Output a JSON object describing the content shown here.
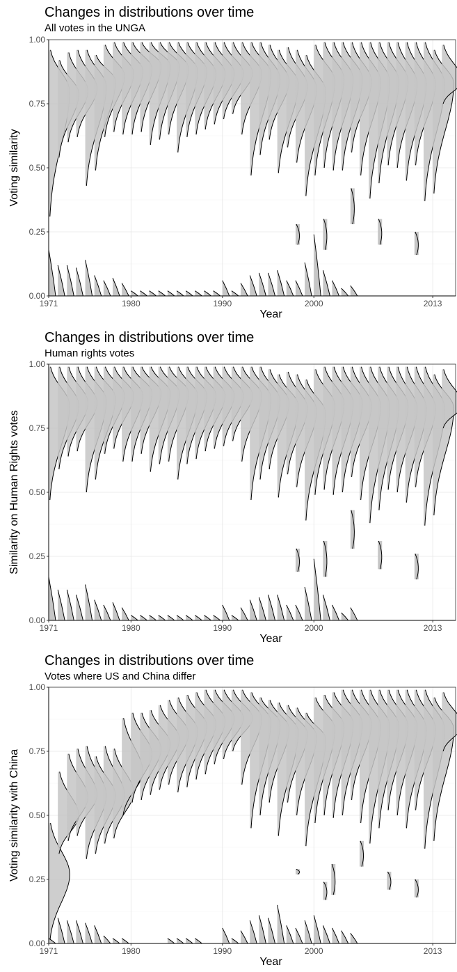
{
  "chart_data": [
    {
      "type": "ridgeline",
      "title": "Changes in distributions over time",
      "subtitle": "All votes in the UNGA",
      "xlabel": "Year",
      "ylabel": "Voting similarity",
      "x_tick_labels": [
        "1971",
        "1980",
        "1990",
        "2000",
        "2013"
      ],
      "y_tick_labels": [
        "0.00",
        "0.25",
        "0.50",
        "0.75",
        "1.00"
      ],
      "xlim": [
        1971,
        2015.5
      ],
      "ylim": [
        0,
        1
      ],
      "grid": true,
      "legend": "none",
      "colors": {
        "fill": "#c6c6c6",
        "line": "#000000"
      },
      "x": [
        1971,
        1972,
        1973,
        1974,
        1975,
        1976,
        1977,
        1978,
        1979,
        1980,
        1981,
        1982,
        1983,
        1984,
        1985,
        1986,
        1987,
        1988,
        1989,
        1990,
        1991,
        1992,
        1993,
        1994,
        1995,
        1996,
        1997,
        1998,
        1999,
        2000,
        2001,
        2002,
        2003,
        2004,
        2005,
        2006,
        2007,
        2008,
        2009,
        2010,
        2011,
        2012,
        2013,
        2014
      ],
      "series": [
        {
          "values": [
            0.96,
            0.92,
            0.95,
            0.96,
            0.96,
            0.94,
            0.98,
            0.99,
            0.99,
            0.99,
            0.99,
            0.99,
            0.99,
            0.99,
            0.99,
            0.99,
            0.99,
            0.99,
            0.99,
            0.99,
            0.99,
            0.99,
            0.99,
            0.99,
            0.98,
            0.96,
            0.97,
            0.96,
            0.94,
            0.98,
            0.99,
            0.99,
            0.99,
            0.99,
            0.99,
            0.99,
            0.99,
            0.99,
            0.99,
            0.99,
            0.99,
            0.99,
            0.96,
            0.98
          ]
        },
        {
          "values": [
            0.8,
            0.79,
            0.8,
            0.81,
            0.82,
            0.84,
            0.86,
            0.87,
            0.88,
            0.89,
            0.9,
            0.9,
            0.9,
            0.89,
            0.88,
            0.88,
            0.87,
            0.87,
            0.87,
            0.87,
            0.87,
            0.87,
            0.87,
            0.85,
            0.84,
            0.83,
            0.82,
            0.81,
            0.8,
            0.84,
            0.85,
            0.85,
            0.85,
            0.84,
            0.84,
            0.84,
            0.84,
            0.84,
            0.83,
            0.83,
            0.83,
            0.83,
            0.83,
            0.84
          ]
        },
        {
          "values": [
            0.31,
            0.54,
            0.6,
            0.62,
            0.43,
            0.49,
            0.62,
            0.64,
            0.63,
            0.63,
            0.64,
            0.59,
            0.61,
            0.63,
            0.56,
            0.62,
            0.63,
            0.65,
            0.67,
            0.69,
            0.71,
            0.63,
            0.47,
            0.55,
            0.61,
            0.48,
            0.58,
            0.52,
            0.39,
            0.47,
            0.5,
            0.49,
            0.49,
            0.56,
            0.47,
            0.38,
            0.44,
            0.51,
            0.5,
            0.45,
            0.51,
            0.37,
            0.4,
            0.75
          ]
        }
      ],
      "low_series": [
        {
          "values": [
            0.18,
            0.12,
            0.12,
            0.11,
            0.14,
            0.08,
            0.06,
            0.07,
            0.05,
            0.02,
            0.02,
            0.02,
            0.02,
            0.02,
            0.02,
            0.02,
            0.02,
            0.02,
            0.02,
            0.06,
            0.02,
            0.05,
            0.08,
            0.09,
            0.09,
            0.1,
            0.06,
            0.06,
            0.13,
            0.24,
            0.1,
            0.06,
            0.03,
            0.04
          ]
        },
        {
          "segments": [
            [
              1998,
              0.2,
              0.28
            ],
            [
              2001,
              0.18,
              0.3
            ],
            [
              2004,
              0.28,
              0.42
            ],
            [
              2007,
              0.2,
              0.3
            ],
            [
              2011,
              0.16,
              0.25
            ]
          ]
        }
      ]
    },
    {
      "type": "ridgeline",
      "title": "Changes in distributions over time",
      "subtitle": "Human rights votes",
      "xlabel": "Year",
      "ylabel": "Similarity on Human Rights votes",
      "x_tick_labels": [
        "1971",
        "1980",
        "1990",
        "2000",
        "2013"
      ],
      "y_tick_labels": [
        "0.00",
        "0.25",
        "0.50",
        "0.75",
        "1.00"
      ],
      "xlim": [
        1971,
        2015.5
      ],
      "ylim": [
        0,
        1
      ],
      "grid": true,
      "legend": "none",
      "colors": {
        "fill": "#c6c6c6",
        "line": "#000000"
      },
      "x": [
        1971,
        1972,
        1973,
        1974,
        1975,
        1976,
        1977,
        1978,
        1979,
        1980,
        1981,
        1982,
        1983,
        1984,
        1985,
        1986,
        1987,
        1988,
        1989,
        1990,
        1991,
        1992,
        1993,
        1994,
        1995,
        1996,
        1997,
        1998,
        1999,
        2000,
        2001,
        2002,
        2003,
        2004,
        2005,
        2006,
        2007,
        2008,
        2009,
        2010,
        2011,
        2012,
        2013,
        2014
      ],
      "series": [
        {
          "values": [
            0.99,
            0.99,
            0.99,
            0.99,
            0.99,
            0.99,
            0.99,
            0.99,
            0.99,
            0.99,
            0.99,
            0.99,
            0.99,
            0.99,
            0.99,
            0.99,
            0.99,
            0.99,
            0.99,
            0.99,
            0.99,
            0.99,
            0.99,
            0.99,
            0.98,
            0.96,
            0.97,
            0.96,
            0.94,
            0.98,
            0.99,
            0.99,
            0.99,
            0.99,
            0.99,
            0.99,
            0.99,
            0.99,
            0.99,
            0.99,
            0.99,
            0.99,
            0.96,
            0.98
          ]
        },
        {
          "values": [
            0.84,
            0.84,
            0.85,
            0.85,
            0.86,
            0.87,
            0.88,
            0.88,
            0.88,
            0.89,
            0.89,
            0.89,
            0.89,
            0.89,
            0.88,
            0.88,
            0.88,
            0.88,
            0.88,
            0.88,
            0.88,
            0.88,
            0.87,
            0.86,
            0.85,
            0.84,
            0.83,
            0.82,
            0.81,
            0.84,
            0.85,
            0.85,
            0.85,
            0.84,
            0.84,
            0.84,
            0.84,
            0.84,
            0.83,
            0.83,
            0.83,
            0.83,
            0.83,
            0.84
          ]
        },
        {
          "values": [
            0.47,
            0.59,
            0.64,
            0.66,
            0.5,
            0.55,
            0.65,
            0.67,
            0.62,
            0.62,
            0.65,
            0.58,
            0.61,
            0.62,
            0.55,
            0.61,
            0.63,
            0.66,
            0.67,
            0.68,
            0.7,
            0.62,
            0.47,
            0.55,
            0.59,
            0.48,
            0.57,
            0.52,
            0.39,
            0.49,
            0.51,
            0.49,
            0.5,
            0.56,
            0.47,
            0.38,
            0.43,
            0.51,
            0.5,
            0.46,
            0.52,
            0.37,
            0.41,
            0.75
          ]
        }
      ],
      "low_series": [
        {
          "values": [
            0.17,
            0.12,
            0.12,
            0.1,
            0.14,
            0.08,
            0.06,
            0.07,
            0.05,
            0.02,
            0.02,
            0.02,
            0.02,
            0.02,
            0.02,
            0.02,
            0.02,
            0.02,
            0.02,
            0.06,
            0.02,
            0.05,
            0.08,
            0.09,
            0.1,
            0.1,
            0.06,
            0.06,
            0.13,
            0.24,
            0.1,
            0.06,
            0.03,
            0.05
          ]
        },
        {
          "segments": [
            [
              1998,
              0.19,
              0.28
            ],
            [
              2001,
              0.17,
              0.31
            ],
            [
              2004,
              0.28,
              0.43
            ],
            [
              2007,
              0.2,
              0.31
            ],
            [
              2011,
              0.16,
              0.26
            ]
          ]
        }
      ]
    },
    {
      "type": "ridgeline",
      "title": "Changes in distributions over time",
      "subtitle": "Votes where US and China differ",
      "xlabel": "Year",
      "ylabel": "Voting similarity with China",
      "x_tick_labels": [
        "1971",
        "1980",
        "1990",
        "2000",
        "2013"
      ],
      "y_tick_labels": [
        "0.00",
        "0.25",
        "0.50",
        "0.75",
        "1.00"
      ],
      "xlim": [
        1971,
        2015.5
      ],
      "ylim": [
        0,
        1
      ],
      "grid": true,
      "legend": "none",
      "colors": {
        "fill": "#c6c6c6",
        "line": "#000000"
      },
      "x": [
        1971,
        1972,
        1973,
        1974,
        1975,
        1976,
        1977,
        1978,
        1979,
        1980,
        1981,
        1982,
        1983,
        1984,
        1985,
        1986,
        1987,
        1988,
        1989,
        1990,
        1991,
        1992,
        1993,
        1994,
        1995,
        1996,
        1997,
        1998,
        1999,
        2000,
        2001,
        2002,
        2003,
        2004,
        2005,
        2006,
        2007,
        2008,
        2009,
        2010,
        2011,
        2012,
        2013,
        2014
      ],
      "series": [
        {
          "values": [
            0.47,
            0.67,
            0.74,
            0.76,
            0.77,
            0.73,
            0.77,
            0.76,
            0.88,
            0.9,
            0.9,
            0.91,
            0.93,
            0.95,
            0.96,
            0.97,
            0.98,
            0.99,
            0.99,
            0.99,
            0.99,
            0.99,
            0.98,
            0.96,
            0.95,
            0.94,
            0.93,
            0.92,
            0.9,
            0.96,
            0.97,
            0.98,
            0.99,
            0.99,
            0.99,
            0.99,
            0.99,
            0.99,
            0.99,
            0.99,
            0.99,
            0.99,
            0.96,
            0.98
          ]
        },
        {
          "values": [
            0.27,
            0.5,
            0.57,
            0.58,
            0.58,
            0.58,
            0.58,
            0.59,
            0.67,
            0.74,
            0.76,
            0.78,
            0.8,
            0.82,
            0.83,
            0.85,
            0.86,
            0.87,
            0.88,
            0.88,
            0.88,
            0.88,
            0.87,
            0.86,
            0.84,
            0.83,
            0.82,
            0.81,
            0.8,
            0.84,
            0.85,
            0.86,
            0.86,
            0.86,
            0.85,
            0.85,
            0.85,
            0.85,
            0.85,
            0.84,
            0.84,
            0.84,
            0.84,
            0.85
          ]
        },
        {
          "values": [
            0.01,
            0.35,
            0.4,
            0.42,
            0.33,
            0.35,
            0.39,
            0.41,
            0.5,
            0.55,
            0.56,
            0.58,
            0.6,
            0.62,
            0.59,
            0.61,
            0.64,
            0.66,
            0.7,
            0.72,
            0.75,
            0.62,
            0.45,
            0.5,
            0.55,
            0.42,
            0.55,
            0.5,
            0.38,
            0.47,
            0.5,
            0.49,
            0.5,
            0.56,
            0.47,
            0.39,
            0.45,
            0.52,
            0.5,
            0.45,
            0.52,
            0.37,
            0.4,
            0.75
          ]
        }
      ],
      "low_series": [
        {
          "values": [
            0.02,
            0.1,
            0.09,
            0.09,
            0.08,
            0.07,
            0.03,
            0.02,
            0.02,
            0.0,
            0.0,
            0.0,
            0.0,
            0.02,
            0.02,
            0.02,
            0.02,
            0.0,
            0.0,
            0.06,
            0.02,
            0.05,
            0.09,
            0.11,
            0.1,
            0.15,
            0.07,
            0.06,
            0.09,
            0.11,
            0.07,
            0.06,
            0.05,
            0.04
          ]
        },
        {
          "segments": [
            [
              1998,
              0.27,
              0.29
            ],
            [
              2001,
              0.17,
              0.24
            ],
            [
              2001.9,
              0.19,
              0.31
            ],
            [
              2005,
              0.3,
              0.4
            ],
            [
              2008,
              0.21,
              0.28
            ],
            [
              2011,
              0.18,
              0.25
            ]
          ]
        }
      ]
    }
  ]
}
